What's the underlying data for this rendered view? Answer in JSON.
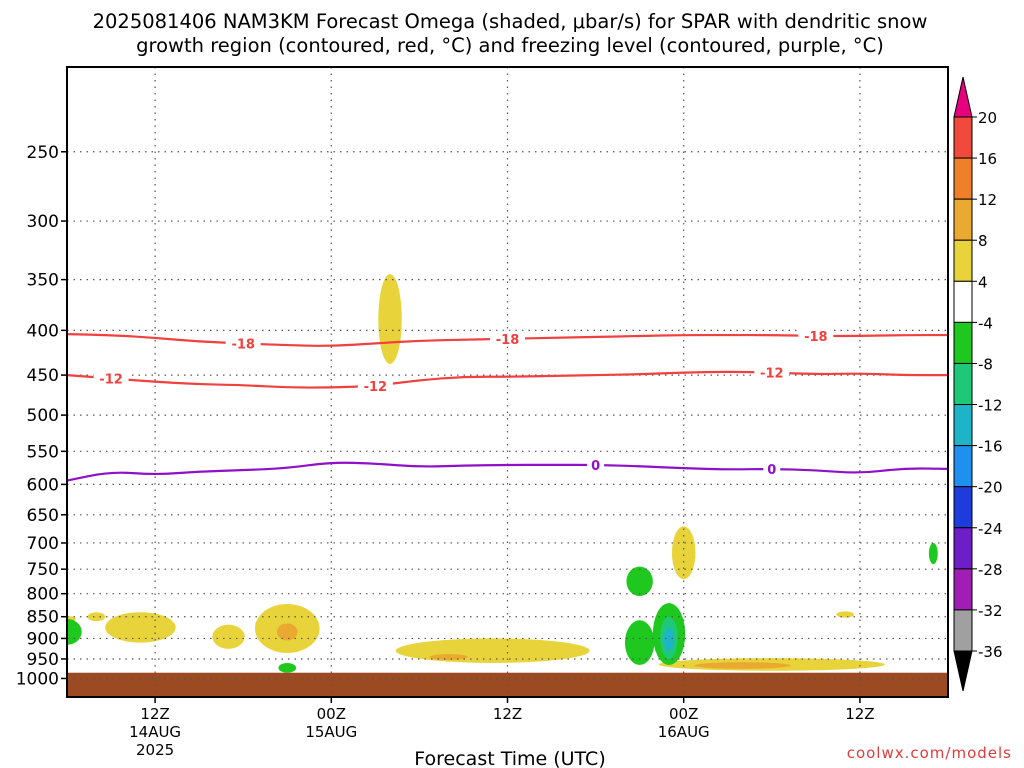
{
  "title": {
    "line1": "2025081406 NAM3KM Forecast Omega (shaded, μbar/s) for SPAR with dendritic snow",
    "line2": "growth region (contoured, red, °C) and freezing level (contoured, purple, °C)"
  },
  "xlabel": "Forecast Time (UTC)",
  "credit": "coolwx.com/models",
  "chart_data": {
    "type": "contour",
    "title": "2025081406 NAM3KM Forecast Omega (shaded, μbar/s) for SPAR with dendritic snow growth region (contoured, red, °C) and freezing level (contoured, purple, °C)",
    "xlabel": "Forecast Time (UTC)",
    "ylabel": "",
    "y_axis": {
      "scale": "log-pressure",
      "inverted": true,
      "ylim": [
        1050,
        200
      ],
      "ticks": [
        250,
        300,
        350,
        400,
        450,
        500,
        550,
        600,
        650,
        700,
        750,
        800,
        850,
        900,
        950,
        1000
      ]
    },
    "x_axis": {
      "start": "2025-08-14 06Z",
      "end": "2025-08-16 18Z",
      "grid": "dotted",
      "ticks": [
        {
          "time": "2025-08-14 12Z",
          "label": "12Z",
          "sub": "14AUG",
          "sub2": "2025"
        },
        {
          "time": "2025-08-15 00Z",
          "label": "00Z",
          "sub": "15AUG",
          "sub2": ""
        },
        {
          "time": "2025-08-15 12Z",
          "label": "12Z",
          "sub": "",
          "sub2": ""
        },
        {
          "time": "2025-08-16 00Z",
          "label": "00Z",
          "sub": "16AUG",
          "sub2": ""
        },
        {
          "time": "2025-08-16 12Z",
          "label": "12Z",
          "sub": "",
          "sub2": ""
        }
      ]
    },
    "colorbar": {
      "labels": [
        "20",
        "16",
        "12",
        "8",
        "4",
        "-4",
        "-8",
        "-12",
        "-16",
        "-20",
        "-24",
        "-28",
        "-32",
        "-36"
      ],
      "colors": [
        "#e6007e",
        "#f04a3c",
        "#f07f2a",
        "#eaaa32",
        "#e8d43a",
        "#ffffff",
        "#1ec81e",
        "#1ec878",
        "#1eb4c8",
        "#1e90f0",
        "#1e3cdc",
        "#6e1ec8",
        "#a01eb4",
        "#a0a0a0",
        "#000000"
      ]
    },
    "series": [
      {
        "name": "-18",
        "color": "#f04040",
        "label_times": [
          "2025-08-14 18Z",
          "2025-08-15 12Z",
          "2025-08-16 09Z"
        ],
        "points": [
          [
            "2025-08-14 06Z",
            404
          ],
          [
            "2025-08-14 09Z",
            405
          ],
          [
            "2025-08-14 12Z",
            408
          ],
          [
            "2025-08-14 15Z",
            412
          ],
          [
            "2025-08-14 18Z",
            414
          ],
          [
            "2025-08-14 21Z",
            416
          ],
          [
            "2025-08-15 00Z",
            417
          ],
          [
            "2025-08-15 03Z",
            414
          ],
          [
            "2025-08-15 06Z",
            411
          ],
          [
            "2025-08-15 09Z",
            410
          ],
          [
            "2025-08-15 12Z",
            409
          ],
          [
            "2025-08-15 15Z",
            408
          ],
          [
            "2025-08-15 18Z",
            407
          ],
          [
            "2025-08-15 21Z",
            406
          ],
          [
            "2025-08-16 00Z",
            405
          ],
          [
            "2025-08-16 03Z",
            405
          ],
          [
            "2025-08-16 06Z",
            405
          ],
          [
            "2025-08-16 09Z",
            406
          ],
          [
            "2025-08-16 12Z",
            406
          ],
          [
            "2025-08-16 15Z",
            405
          ],
          [
            "2025-08-16 18Z",
            405
          ]
        ]
      },
      {
        "name": "-12",
        "color": "#f04040",
        "label_times": [
          "2025-08-14 09Z",
          "2025-08-15 03Z",
          "2025-08-16 06Z"
        ],
        "points": [
          [
            "2025-08-14 06Z",
            450
          ],
          [
            "2025-08-14 09Z",
            454
          ],
          [
            "2025-08-14 12Z",
            458
          ],
          [
            "2025-08-14 15Z",
            461
          ],
          [
            "2025-08-14 18Z",
            462
          ],
          [
            "2025-08-14 21Z",
            465
          ],
          [
            "2025-08-15 00Z",
            465
          ],
          [
            "2025-08-15 03Z",
            463
          ],
          [
            "2025-08-15 06Z",
            456
          ],
          [
            "2025-08-15 09Z",
            452
          ],
          [
            "2025-08-15 12Z",
            452
          ],
          [
            "2025-08-15 15Z",
            451
          ],
          [
            "2025-08-15 18Z",
            450
          ],
          [
            "2025-08-15 21Z",
            449
          ],
          [
            "2025-08-16 00Z",
            447
          ],
          [
            "2025-08-16 03Z",
            446
          ],
          [
            "2025-08-16 06Z",
            447
          ],
          [
            "2025-08-16 09Z",
            449
          ],
          [
            "2025-08-16 12Z",
            448
          ],
          [
            "2025-08-16 15Z",
            450
          ],
          [
            "2025-08-16 18Z",
            450
          ]
        ]
      },
      {
        "name": "0",
        "color": "#9010c8",
        "label_times": [
          "2025-08-15 18Z",
          "2025-08-16 06Z"
        ],
        "points": [
          [
            "2025-08-14 06Z",
            594
          ],
          [
            "2025-08-14 09Z",
            580
          ],
          [
            "2025-08-14 12Z",
            585
          ],
          [
            "2025-08-14 15Z",
            580
          ],
          [
            "2025-08-14 18Z",
            578
          ],
          [
            "2025-08-14 21Z",
            575
          ],
          [
            "2025-08-15 00Z",
            566
          ],
          [
            "2025-08-15 03Z",
            568
          ],
          [
            "2025-08-15 06Z",
            573
          ],
          [
            "2025-08-15 09Z",
            571
          ],
          [
            "2025-08-15 12Z",
            570
          ],
          [
            "2025-08-15 15Z",
            570
          ],
          [
            "2025-08-15 18Z",
            570
          ],
          [
            "2025-08-15 21Z",
            572
          ],
          [
            "2025-08-16 00Z",
            575
          ],
          [
            "2025-08-16 03Z",
            577
          ],
          [
            "2025-08-16 06Z",
            576
          ],
          [
            "2025-08-16 09Z",
            578
          ],
          [
            "2025-08-16 12Z",
            583
          ],
          [
            "2025-08-16 15Z",
            575
          ],
          [
            "2025-08-16 18Z",
            576
          ]
        ]
      }
    ],
    "shaded_regions": [
      {
        "range": "4 to 8",
        "color": "#e8d43a",
        "time_center": "2025-08-15 04Z",
        "p_top": 345,
        "p_bottom": 437,
        "half_width_h": 0.8
      },
      {
        "range": "4 to 8",
        "color": "#e8d43a",
        "time_center": "2025-08-14 06Z",
        "p_top": 850,
        "p_bottom": 860,
        "half_width_h": 0.6
      },
      {
        "range": "4 to 8",
        "color": "#e8d43a",
        "time_center": "2025-08-14 08Z",
        "p_top": 840,
        "p_bottom": 860,
        "half_width_h": 0.6
      },
      {
        "range": "4 to 8",
        "color": "#e8d43a",
        "time_center": "2025-08-14 11Z",
        "p_top": 840,
        "p_bottom": 910,
        "half_width_h": 2.4
      },
      {
        "range": "4 to 8",
        "color": "#e8d43a",
        "time_center": "2025-08-14 17Z",
        "p_top": 868,
        "p_bottom": 925,
        "half_width_h": 1.1
      },
      {
        "range": "4 to 8",
        "color": "#e8d43a",
        "time_center": "2025-08-14 21Z",
        "p_top": 822,
        "p_bottom": 935,
        "half_width_h": 2.2
      },
      {
        "range": "4 to 8",
        "color": "#e8d43a",
        "time_center": "2025-08-15 11Z",
        "p_top": 900,
        "p_bottom": 960,
        "half_width_h": 6.6
      },
      {
        "range": "4 to 8",
        "color": "#e8d43a",
        "time_center": "2025-08-16 00Z",
        "p_top": 670,
        "p_bottom": 770,
        "half_width_h": 0.8
      },
      {
        "range": "4 to 8",
        "color": "#e8d43a",
        "time_center": "2025-08-16 06Z",
        "p_top": 948,
        "p_bottom": 980,
        "half_width_h": 7.7
      },
      {
        "range": "4 to 8",
        "color": "#e8d43a",
        "time_center": "2025-08-16 11Z",
        "p_top": 838,
        "p_bottom": 852,
        "half_width_h": 0.6
      },
      {
        "range": "8 to 12",
        "color": "#eaaa32",
        "time_center": "2025-08-14 21Z",
        "p_top": 865,
        "p_bottom": 905,
        "half_width_h": 0.7
      },
      {
        "range": "8 to 12",
        "color": "#eaaa32",
        "time_center": "2025-08-15 08Z",
        "p_top": 938,
        "p_bottom": 952,
        "half_width_h": 1.3
      },
      {
        "range": "8 to 12",
        "color": "#eaaa32",
        "time_center": "2025-08-16 04Z",
        "p_top": 958,
        "p_bottom": 975,
        "half_width_h": 3.3
      },
      {
        "range": "-4 to -8",
        "color": "#1ec81e",
        "time_center": "2025-08-14 06Z",
        "p_top": 855,
        "p_bottom": 915,
        "half_width_h": 1.0
      },
      {
        "range": "-4 to -8",
        "color": "#1ec81e",
        "time_center": "2025-08-14 21Z",
        "p_top": 960,
        "p_bottom": 985,
        "half_width_h": 0.6
      },
      {
        "range": "-4 to -8",
        "color": "#1ec81e",
        "time_center": "2025-08-15 21Z",
        "p_top": 745,
        "p_bottom": 805,
        "half_width_h": 0.9
      },
      {
        "range": "-4 to -8",
        "color": "#1ec81e",
        "time_center": "2025-08-15 21Z",
        "p_top": 858,
        "p_bottom": 965,
        "half_width_h": 1.0
      },
      {
        "range": "-4 to -8",
        "color": "#1ec81e",
        "time_center": "2025-08-15 23Z",
        "p_top": 820,
        "p_bottom": 965,
        "half_width_h": 1.1
      },
      {
        "range": "-4 to -8",
        "color": "#1ec81e",
        "time_center": "2025-08-16 17Z",
        "p_top": 700,
        "p_bottom": 740,
        "half_width_h": 0.3
      },
      {
        "range": "-8 to -12",
        "color": "#1ec878",
        "time_center": "2025-08-15 23Z",
        "p_top": 850,
        "p_bottom": 950,
        "half_width_h": 0.6
      },
      {
        "range": "-12 to -16",
        "color": "#1eb4c8",
        "time_center": "2025-08-15 23Z",
        "p_top": 875,
        "p_bottom": 930,
        "half_width_h": 0.35
      }
    ],
    "ground": {
      "color": "#9b4a22",
      "p_top": 985
    }
  }
}
